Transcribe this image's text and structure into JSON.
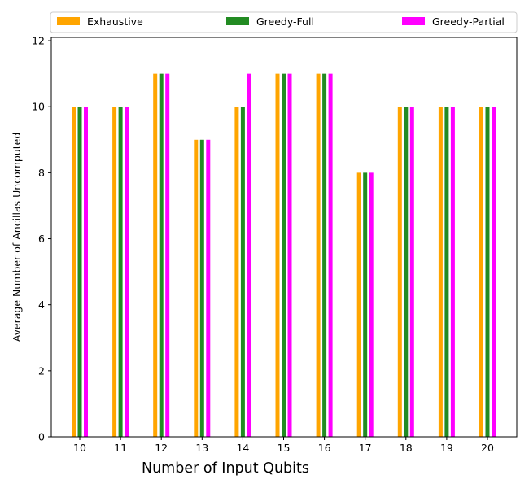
{
  "chart_data": {
    "type": "bar",
    "xlabel": "Number of Input Qubits",
    "ylabel": "Average Number of Ancillas Uncomputed",
    "categories": [
      "10",
      "11",
      "12",
      "13",
      "14",
      "15",
      "16",
      "17",
      "18",
      "19",
      "20"
    ],
    "ylim": [
      0,
      12.1
    ],
    "yticks": [
      0,
      2,
      4,
      6,
      8,
      10,
      12
    ],
    "grid": false,
    "legend_placement": "top",
    "series": [
      {
        "name": "Exhaustive",
        "color": "#ffa500",
        "values": [
          10,
          10,
          11,
          9,
          10,
          11,
          11,
          8,
          10,
          10,
          10
        ]
      },
      {
        "name": "Greedy-Full",
        "color": "#228b22",
        "values": [
          10,
          10,
          11,
          9,
          10,
          11,
          11,
          8,
          10,
          10,
          10
        ]
      },
      {
        "name": "Greedy-Partial",
        "color": "#ff00ff",
        "values": [
          10,
          10,
          11,
          9,
          11,
          11,
          11,
          8,
          10,
          10,
          10
        ]
      }
    ]
  }
}
